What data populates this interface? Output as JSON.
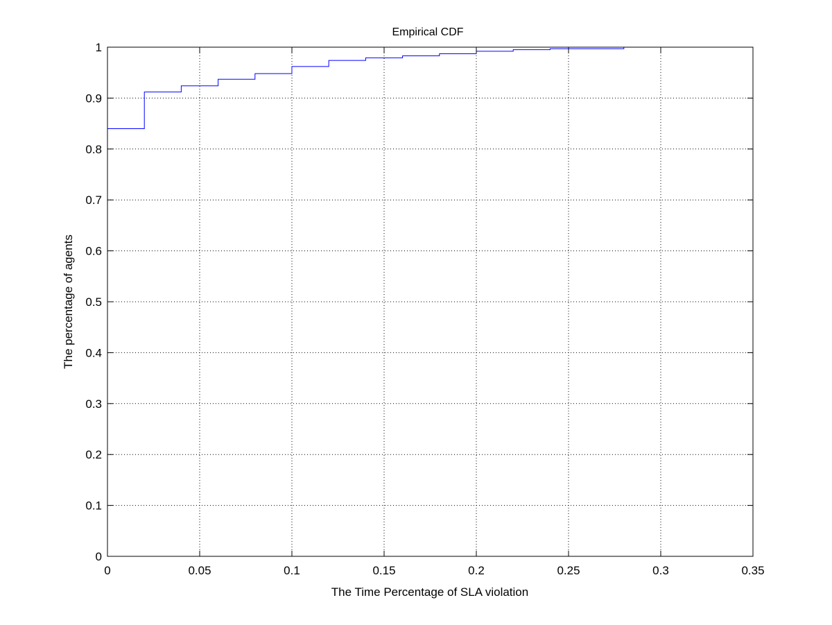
{
  "chart_data": {
    "type": "line",
    "step": true,
    "title": "Empirical CDF",
    "xlabel": "The Time Percentage of SLA violation",
    "ylabel": "The percentage of agents",
    "xlim": [
      0,
      0.35
    ],
    "ylim": [
      0,
      1
    ],
    "grid": true,
    "grid_style": "dotted",
    "line_color": "#0000ff",
    "x_ticks": [
      0,
      0.05,
      0.1,
      0.15,
      0.2,
      0.25,
      0.3,
      0.35
    ],
    "x_tick_labels": [
      "0",
      "0.05",
      "0.1",
      "0.15",
      "0.2",
      "0.25",
      "0.3",
      "0.35"
    ],
    "y_ticks": [
      0,
      0.1,
      0.2,
      0.3,
      0.4,
      0.5,
      0.6,
      0.7,
      0.8,
      0.9,
      1
    ],
    "y_tick_labels": [
      "0",
      "0.1",
      "0.2",
      "0.3",
      "0.4",
      "0.5",
      "0.6",
      "0.7",
      "0.8",
      "0.9",
      "1"
    ],
    "x": [
      0,
      0.02,
      0.04,
      0.06,
      0.08,
      0.1,
      0.12,
      0.14,
      0.16,
      0.18,
      0.2,
      0.22,
      0.24,
      0.28
    ],
    "y": [
      0.84,
      0.912,
      0.924,
      0.937,
      0.948,
      0.962,
      0.974,
      0.979,
      0.983,
      0.987,
      0.992,
      0.995,
      0.997,
      1.0
    ]
  }
}
